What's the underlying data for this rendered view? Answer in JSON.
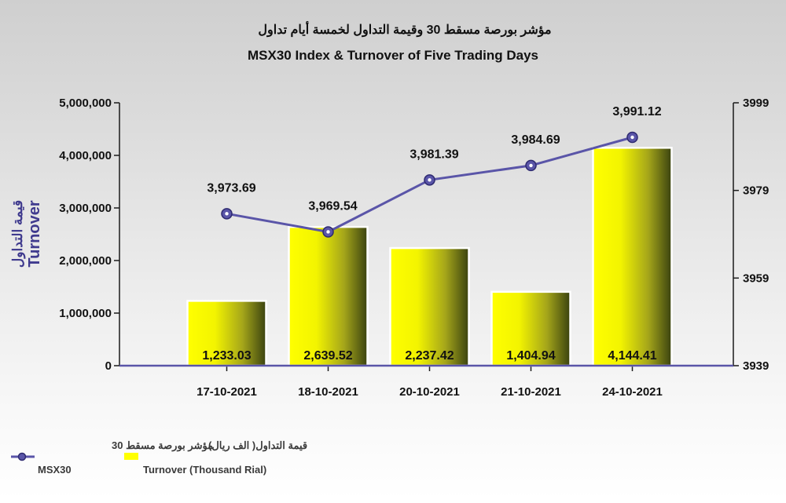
{
  "title_ar": "مؤشر بورصة مسقط 30 وقيمة التداول لخمسة أيام تداول",
  "title_en": "MSX30 Index & Turnover of Five Trading Days",
  "y_left_label_ar": "قيمة التداول",
  "y_left_label_en": "Turnover",
  "legend": {
    "line_ar": "مؤشر بورصة مسقط 30",
    "line_en": "MSX30",
    "bar_ar": "قيمة التداول( الف ريال)",
    "bar_en": "Turnover (Thousand Rial)"
  },
  "colors": {
    "line": "#5a55a8",
    "bar_light": "#ffff00",
    "bar_dark": "#3a4210",
    "axis": "#1b1b1b"
  },
  "chart_data": {
    "type": "bar",
    "categories": [
      "17-10-2021",
      "18-10-2021",
      "20-10-2021",
      "21-10-2021",
      "24-10-2021"
    ],
    "series": [
      {
        "type": "bar",
        "axis": "left",
        "values": [
          1233.03,
          2639.52,
          2237.42,
          1404.94,
          4144.41
        ],
        "labels": [
          "1,233.03",
          "2,639.52",
          "2,237.42",
          "1,404.94",
          "4,144.41"
        ]
      },
      {
        "type": "line",
        "axis": "right",
        "values": [
          3973.69,
          3969.54,
          3981.39,
          3984.69,
          3991.12
        ],
        "labels": [
          "3,973.69",
          "3,969.54",
          "3,981.39",
          "3,984.69",
          "3,991.12"
        ]
      }
    ],
    "y_left": {
      "min": 0,
      "max": 5000000,
      "ticks": [
        "0",
        "1,000,000",
        "2,000,000",
        "3,000,000",
        "4,000,000",
        "5,000,000"
      ],
      "tick_values": [
        0,
        1000000,
        2000000,
        3000000,
        4000000,
        5000000
      ]
    },
    "y_right": {
      "min": 3939,
      "max": 3999,
      "ticks": [
        "3939",
        "3959",
        "3979",
        "3999"
      ],
      "tick_values": [
        3939,
        3959,
        3979,
        3999
      ]
    },
    "legend_position": "bottom-left",
    "grid": false
  }
}
